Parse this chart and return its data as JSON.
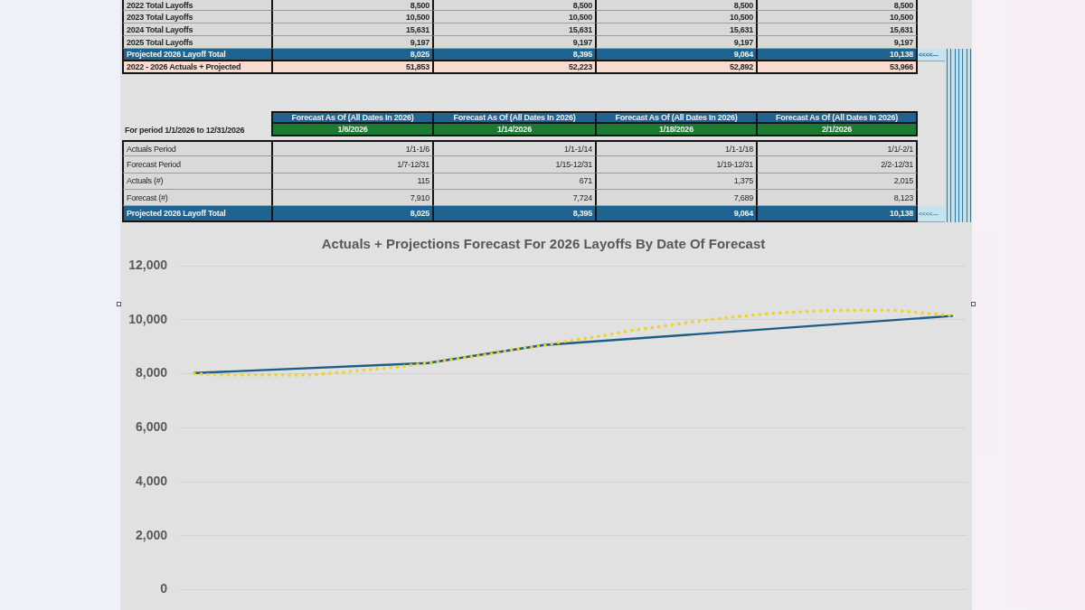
{
  "chart_data": [
    {
      "type": "other",
      "cell_labels": [
        [
          "2022 Total Layoffs",
          "8,500",
          "8,500",
          "8,500",
          "8,500"
        ],
        [
          "2023 Total Layoffs",
          "10,500",
          "10,500",
          "10,500",
          "10,500"
        ],
        [
          "2024 Total Layoffs",
          "15,631",
          "15,631",
          "15,631",
          "15,631"
        ],
        [
          "2025 Total Layoffs",
          "9,197",
          "9,197",
          "9,197",
          "9,197"
        ],
        [
          "Projected 2026 Layoff Total",
          "8,025",
          "8,395",
          "9,064",
          "10,138",
          "<<<<---"
        ],
        [
          "2022 - 2026 Actuals + Projected",
          "51,853",
          "52,223",
          "52,892",
          "53,966"
        ]
      ],
      "colors": [
        [
          "#d9d9d9",
          "#d9d9d9",
          "#d9d9d9",
          "#d9d9d9",
          "#d9d9d9"
        ],
        [
          "#d9d9d9",
          "#d9d9d9",
          "#d9d9d9",
          "#d9d9d9",
          "#d9d9d9"
        ],
        [
          "#d9d9d9",
          "#d9d9d9",
          "#d9d9d9",
          "#d9d9d9",
          "#d9d9d9"
        ],
        [
          "#d9d9d9",
          "#d9d9d9",
          "#d9d9d9",
          "#d9d9d9",
          "#d9d9d9"
        ],
        [
          "#1f6391",
          "#1f6391",
          "#1f6391",
          "#1f6391",
          "#1f6391",
          "#c6e4ef"
        ],
        [
          "#f9dccf",
          "#f9dccf",
          "#f9dccf",
          "#f9dccf",
          "#f9dccf"
        ]
      ]
    },
    {
      "type": "other",
      "cell_labels": [
        [
          null,
          "Forecast As Of (All Dates In 2026)",
          "Forecast As Of (All Dates In 2026)",
          "Forecast As Of (All Dates In 2026)",
          "Forecast As Of (All Dates In 2026)"
        ],
        [
          "For period 1/1/2026 to 12/31/2026",
          "1/6/2026",
          "1/14/2026",
          "1/18/2026",
          "2/1/2026"
        ],
        [
          "Actuals Period",
          "1/1-1/6",
          "1/1-1/14",
          "1/1-1/18",
          "1/1/-2/1"
        ],
        [
          "Forecast Period",
          "1/7-12/31",
          "1/15-12/31",
          "1/19-12/31",
          "2/2-12/31"
        ],
        [
          "Actuals (#)",
          "115",
          "671",
          "1,375",
          "2,015"
        ],
        [
          "Forecast (#)",
          "7,910",
          "7,724",
          "7,689",
          "8,123"
        ],
        [
          "Projected 2026 Layoff Total",
          "8,025",
          "8,395",
          "9,064",
          "10,138",
          "<<<<---"
        ]
      ],
      "colors": [
        [
          null,
          "#1f6391",
          "#1f6391",
          "#1f6391",
          "#1f6391"
        ],
        [
          null,
          "#1e7a32",
          "#1e7a32",
          "#1e7a32",
          "#1e7a32"
        ],
        [
          "#d9d9d9",
          "#d9d9d9",
          "#d9d9d9",
          "#d9d9d9",
          "#d9d9d9"
        ],
        [
          "#d9d9d9",
          "#d9d9d9",
          "#d9d9d9",
          "#d9d9d9",
          "#d9d9d9"
        ],
        [
          "#d9d9d9",
          "#d9d9d9",
          "#d9d9d9",
          "#d9d9d9",
          "#d9d9d9"
        ],
        [
          "#d9d9d9",
          "#d9d9d9",
          "#d9d9d9",
          "#d9d9d9",
          "#d9d9d9"
        ],
        [
          "#1f6391",
          "#1f6391",
          "#1f6391",
          "#1f6391",
          "#1f6391",
          "#c6e4ef"
        ]
      ]
    },
    {
      "type": "line",
      "title": "Actuals + Projections Forecast For 2026 Layoffs By Date Of Forecast",
      "categories": [
        null,
        null,
        null,
        null,
        null,
        null,
        null,
        null,
        null,
        null,
        null,
        null,
        null,
        null,
        null,
        null,
        null,
        null,
        null,
        null,
        null,
        null,
        null,
        null,
        null,
        null,
        null
      ],
      "series": [
        {
          "color": "#1d5e86",
          "values": [
            8025,
            null,
            null,
            null,
            null,
            null,
            null,
            null,
            8395,
            null,
            null,
            null,
            9064,
            null,
            null,
            null,
            null,
            null,
            null,
            null,
            null,
            null,
            null,
            null,
            null,
            null,
            10138
          ]
        },
        {
          "color": "#f2d118",
          "line_style": "dotted",
          "values": [
            8000,
            7950,
            7950,
            7950,
            7950,
            8050,
            8150,
            8250,
            8400,
            8550,
            8700,
            8900,
            9050,
            9250,
            9400,
            9600,
            9750,
            9900,
            10050,
            10150,
            10250,
            10300,
            10350,
            10350,
            10350,
            10250,
            10150
          ]
        }
      ],
      "ylim": [
        0,
        12000
      ],
      "yticks": [
        0,
        {
          "value": 2000,
          "label": "2,000"
        },
        {
          "value": 4000,
          "label": "4,000"
        },
        {
          "value": 6000,
          "label": "6,000"
        },
        {
          "value": 8000,
          "label": "8,000"
        },
        {
          "value": 10000,
          "label": "10,000"
        },
        {
          "value": 12000,
          "label": "12,000"
        }
      ],
      "grid": "y",
      "tick_labels": "y",
      "marker": "none"
    }
  ]
}
